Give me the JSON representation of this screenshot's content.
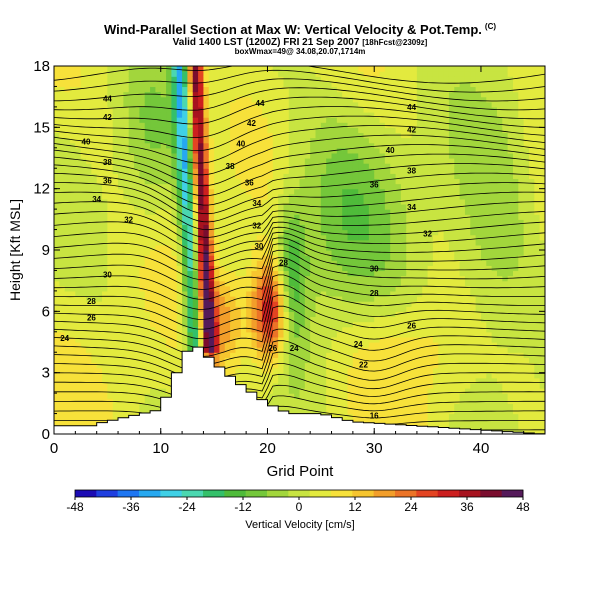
{
  "chart_data": {
    "type": "heatmap",
    "title": "Wind-Parallel Section at Max W: Vertical Velocity & Pot.Temp.",
    "title_mark": "(C)",
    "subtitle_main": "Valid 1400 LST (1200Z) FRI 21 Sep 2007",
    "subtitle_tag": "[18hFcst@2309z]",
    "subtitle2": "boxWmax=49@ 34.08,20.07,1714m",
    "xlabel": "Grid Point",
    "ylabel": "Height [Kft MSL]",
    "xlim": [
      0,
      46
    ],
    "ylim": [
      0,
      18
    ],
    "x_ticks": [
      0,
      10,
      20,
      30,
      40
    ],
    "y_ticks": [
      0,
      3,
      6,
      9,
      12,
      15,
      18
    ],
    "colorbar": {
      "label": "Vertical Velocity [cm/s]",
      "ticks": [
        -48,
        -36,
        -24,
        -12,
        0,
        12,
        24,
        36,
        48
      ],
      "range": [
        -48,
        48
      ],
      "colors": [
        "#1c0cb4",
        "#1f3fe0",
        "#1e76f2",
        "#26a8f0",
        "#3fd0e6",
        "#4bd7b0",
        "#34c06a",
        "#4fbb3a",
        "#74c73a",
        "#a2d63c",
        "#c8e441",
        "#e3ea3e",
        "#f7e13a",
        "#f6c52f",
        "#f29e2a",
        "#ec7427",
        "#e34422",
        "#cc1f1f",
        "#a7131f",
        "#7a0d2e",
        "#551a5a"
      ]
    },
    "isotherm_labels": [
      {
        "x": 5,
        "y": 16.4,
        "text": "44"
      },
      {
        "x": 19.3,
        "y": 16.2,
        "text": "44"
      },
      {
        "x": 33.5,
        "y": 16.0,
        "text": "44"
      },
      {
        "x": 5,
        "y": 15.5,
        "text": "42"
      },
      {
        "x": 18.5,
        "y": 15.2,
        "text": "42"
      },
      {
        "x": 33.5,
        "y": 14.9,
        "text": "42"
      },
      {
        "x": 3,
        "y": 14.3,
        "text": "40"
      },
      {
        "x": 17.5,
        "y": 14.2,
        "text": "40"
      },
      {
        "x": 31.5,
        "y": 13.9,
        "text": "40"
      },
      {
        "x": 5,
        "y": 13.3,
        "text": "38"
      },
      {
        "x": 16.5,
        "y": 13.1,
        "text": "38"
      },
      {
        "x": 33.5,
        "y": 12.9,
        "text": "38"
      },
      {
        "x": 5,
        "y": 12.4,
        "text": "36"
      },
      {
        "x": 18.3,
        "y": 12.3,
        "text": "36"
      },
      {
        "x": 30,
        "y": 12.2,
        "text": "36"
      },
      {
        "x": 4,
        "y": 11.5,
        "text": "34"
      },
      {
        "x": 19,
        "y": 11.3,
        "text": "34"
      },
      {
        "x": 33.5,
        "y": 11.1,
        "text": "34"
      },
      {
        "x": 7,
        "y": 10.5,
        "text": "32"
      },
      {
        "x": 19,
        "y": 10.2,
        "text": "32"
      },
      {
        "x": 35,
        "y": 9.8,
        "text": "32"
      },
      {
        "x": 19.2,
        "y": 9.2,
        "text": "30"
      },
      {
        "x": 5,
        "y": 7.8,
        "text": "30"
      },
      {
        "x": 30,
        "y": 8.1,
        "text": "30"
      },
      {
        "x": 21.5,
        "y": 8.4,
        "text": "28"
      },
      {
        "x": 3.5,
        "y": 6.5,
        "text": "28"
      },
      {
        "x": 30,
        "y": 6.9,
        "text": "28"
      },
      {
        "x": 3.5,
        "y": 5.7,
        "text": "26"
      },
      {
        "x": 20.5,
        "y": 4.2,
        "text": "26"
      },
      {
        "x": 33.5,
        "y": 5.3,
        "text": "26"
      },
      {
        "x": 1,
        "y": 4.7,
        "text": "24"
      },
      {
        "x": 22.5,
        "y": 4.2,
        "text": "24"
      },
      {
        "x": 28.5,
        "y": 4.4,
        "text": "24"
      },
      {
        "x": 29,
        "y": 3.4,
        "text": "22"
      },
      {
        "x": 30,
        "y": 0.9,
        "text": "16"
      }
    ],
    "terrain_profile": [
      [
        4,
        0.5
      ],
      [
        10,
        1.2
      ],
      [
        11,
        2.4
      ],
      [
        12,
        3.6
      ],
      [
        13,
        4.5
      ],
      [
        15,
        3.5
      ],
      [
        17,
        2.6
      ],
      [
        20,
        1.5
      ],
      [
        22,
        1.0
      ],
      [
        25,
        1.0
      ],
      [
        28,
        0.6
      ],
      [
        46,
        0
      ]
    ]
  }
}
